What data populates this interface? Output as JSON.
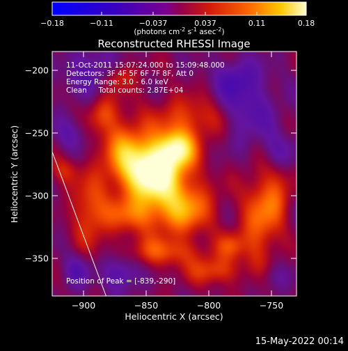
{
  "chart_data": {
    "type": "heatmap",
    "title": "Reconstructed RHESSI Image",
    "xlabel": "Heliocentric X (arcsec)",
    "ylabel": "Heliocentric Y (arcsec)",
    "xlim": [
      -925,
      -730
    ],
    "ylim": [
      -380,
      -185
    ],
    "x_ticks": [
      -900,
      -850,
      -800,
      -750
    ],
    "y_ticks": [
      -200,
      -250,
      -300,
      -350
    ],
    "colorbar": {
      "range": [
        -0.18,
        0.18
      ],
      "tick_values": [
        -0.18,
        -0.11,
        -0.037,
        0.037,
        0.11,
        0.18
      ],
      "tick_labels": [
        "-0.18",
        "-0.11",
        "-0.037",
        "0.037",
        "0.11",
        "0.18"
      ],
      "unit_main": "(photons cm",
      "unit_exp1": "-2",
      "unit_mid1": " s",
      "unit_exp2": "-1",
      "unit_mid2": " asec",
      "unit_exp3": "-2",
      "unit_end": ")"
    },
    "annotations": [
      "11-Oct-2011 15:07:24.000 to 15:09:48.000",
      "Detectors: 3F 4F 5F 6F 7F 8F, Att 0",
      "Energy Range: 3.0 - 6.0 keV",
      "Clean     Total counts: 2.87E+04"
    ],
    "peak_label": "Position of Peak = [-839,-290]",
    "peak": {
      "x": -839,
      "y": -290
    },
    "limb_line": [
      [
        -925,
        -265
      ],
      [
        -882,
        -380
      ]
    ],
    "sources": [
      {
        "x": -845,
        "y": -280,
        "sx": 16,
        "sy": 16,
        "amp": 0.17
      },
      {
        "x": -825,
        "y": -262,
        "sx": 10,
        "sy": 10,
        "amp": 0.11
      },
      {
        "x": -870,
        "y": -262,
        "sx": 12,
        "sy": 18,
        "amp": 0.06
      },
      {
        "x": -862,
        "y": -315,
        "sx": 16,
        "sy": 10,
        "amp": 0.05
      },
      {
        "x": -820,
        "y": -310,
        "sx": 16,
        "sy": 14,
        "amp": 0.08
      },
      {
        "x": -812,
        "y": -238,
        "sx": 20,
        "sy": 12,
        "amp": 0.05
      },
      {
        "x": -760,
        "y": -320,
        "sx": 10,
        "sy": 28,
        "amp": 0.07
      },
      {
        "x": -745,
        "y": -300,
        "sx": 8,
        "sy": 18,
        "amp": 0.05
      },
      {
        "x": -895,
        "y": -312,
        "sx": 10,
        "sy": 20,
        "amp": 0.06
      },
      {
        "x": -885,
        "y": -235,
        "sx": 8,
        "sy": 10,
        "amp": 0.05
      },
      {
        "x": -872,
        "y": -205,
        "sx": 9,
        "sy": 8,
        "amp": 0.05
      },
      {
        "x": -835,
        "y": -345,
        "sx": 22,
        "sy": 8,
        "amp": 0.05
      },
      {
        "x": -795,
        "y": -360,
        "sx": 14,
        "sy": 8,
        "amp": 0.06
      },
      {
        "x": -782,
        "y": -340,
        "sx": 8,
        "sy": 8,
        "amp": 0.05
      },
      {
        "x": -915,
        "y": -280,
        "sx": 8,
        "sy": 8,
        "amp": 0.04
      },
      {
        "x": -842,
        "y": -290,
        "sx": 28,
        "sy": 40,
        "amp": 0.03
      },
      {
        "x": -895,
        "y": -200,
        "sx": 14,
        "sy": 12,
        "amp": -0.05
      },
      {
        "x": -770,
        "y": -230,
        "sx": 16,
        "sy": 20,
        "amp": -0.05
      },
      {
        "x": -745,
        "y": -265,
        "sx": 10,
        "sy": 10,
        "amp": -0.04
      },
      {
        "x": -870,
        "y": -362,
        "sx": 10,
        "sy": 10,
        "amp": -0.06
      },
      {
        "x": -905,
        "y": -360,
        "sx": 8,
        "sy": 10,
        "amp": -0.04
      },
      {
        "x": -780,
        "y": -205,
        "sx": 12,
        "sy": 10,
        "amp": -0.04
      },
      {
        "x": -910,
        "y": -250,
        "sx": 10,
        "sy": 10,
        "amp": -0.035
      },
      {
        "x": -750,
        "y": -365,
        "sx": 10,
        "sy": 8,
        "amp": -0.03
      }
    ]
  },
  "footer": {
    "date": "15-May-2022 00:14"
  }
}
